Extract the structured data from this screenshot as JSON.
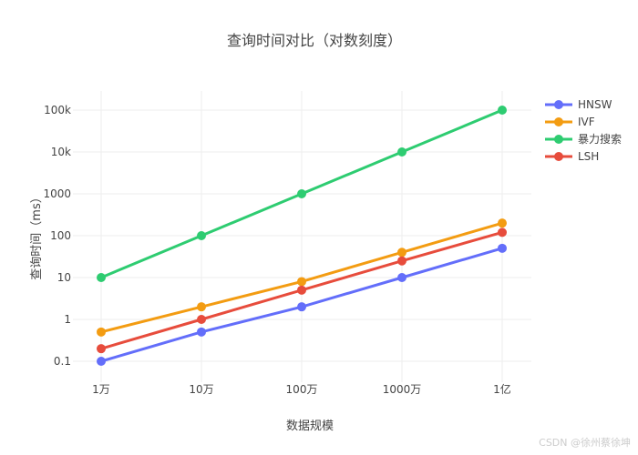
{
  "chart_data": {
    "type": "line",
    "title": "查询时间对比（对数刻度）",
    "xlabel": "数据规模",
    "ylabel": "查询时间（ms）",
    "yscale": "log",
    "categories": [
      "1万",
      "10万",
      "100万",
      "1000万",
      "1亿"
    ],
    "yticks": [
      0.1,
      1,
      10,
      100,
      1000,
      10000,
      100000
    ],
    "ytick_labels": [
      "0.1",
      "1",
      "10",
      "100",
      "1000",
      "10k",
      "100k"
    ],
    "ylim": [
      0.04,
      250000
    ],
    "grid": true,
    "legend_position": "right-top",
    "series": [
      {
        "name": "HNSW",
        "color": "#636efa",
        "values": [
          0.1,
          0.5,
          2,
          10,
          50
        ]
      },
      {
        "name": "IVF",
        "color": "#f39c12",
        "values": [
          0.5,
          2,
          8,
          40,
          200
        ]
      },
      {
        "name": "暴力搜索",
        "color": "#2ecc71",
        "values": [
          10,
          100,
          1000,
          10000,
          100000
        ]
      },
      {
        "name": "LSH",
        "color": "#e74c3c",
        "values": [
          0.2,
          1,
          5,
          25,
          120
        ]
      }
    ]
  },
  "watermark": "CSDN @徐州蔡徐坤"
}
